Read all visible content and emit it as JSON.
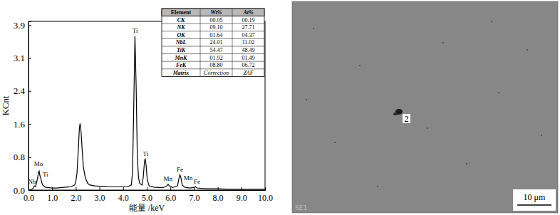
{
  "chart_data": {
    "type": "line",
    "x_label": "能量 /keV",
    "y_label": "KCnt",
    "x": [
      0,
      0.1,
      0.2,
      0.25,
      0.3,
      0.35,
      0.39,
      0.42,
      0.45,
      0.48,
      0.52,
      0.56,
      0.6,
      0.7,
      0.8,
      1.0,
      1.2,
      1.4,
      1.6,
      1.8,
      1.95,
      2.0,
      2.05,
      2.1,
      2.15,
      2.18,
      2.22,
      2.27,
      2.32,
      2.4,
      2.5,
      2.6,
      2.8,
      3.0,
      3.2,
      3.4,
      3.6,
      3.8,
      4.0,
      4.2,
      4.35,
      4.4,
      4.45,
      4.5,
      4.55,
      4.6,
      4.65,
      4.7,
      4.8,
      4.85,
      4.9,
      4.93,
      4.97,
      5.02,
      5.1,
      5.3,
      5.5,
      5.7,
      5.85,
      5.9,
      5.95,
      6.1,
      6.3,
      6.35,
      6.4,
      6.45,
      6.5,
      6.6,
      6.8,
      7.0,
      7.06,
      7.12,
      7.3,
      7.6,
      8.0,
      8.5,
      9.0,
      9.5,
      10.0
    ],
    "values": [
      0,
      0.01,
      0.04,
      0.1,
      0.08,
      0.2,
      0.3,
      0.42,
      0.45,
      0.35,
      0.28,
      0.18,
      0.12,
      0.07,
      0.06,
      0.05,
      0.05,
      0.06,
      0.07,
      0.08,
      0.12,
      0.2,
      0.4,
      0.9,
      1.45,
      1.58,
      1.4,
      0.95,
      0.55,
      0.3,
      0.16,
      0.12,
      0.1,
      0.09,
      0.09,
      0.08,
      0.08,
      0.08,
      0.08,
      0.08,
      0.12,
      0.45,
      2.0,
      3.65,
      2.5,
      0.8,
      0.3,
      0.16,
      0.12,
      0.3,
      0.65,
      0.75,
      0.6,
      0.25,
      0.1,
      0.07,
      0.06,
      0.06,
      0.1,
      0.14,
      0.1,
      0.06,
      0.1,
      0.25,
      0.36,
      0.28,
      0.12,
      0.07,
      0.05,
      0.06,
      0.08,
      0.05,
      0.04,
      0.03,
      0.03,
      0.02,
      0.02,
      0.02,
      0.02
    ],
    "color": "#000000",
    "xlim": [
      0,
      10.0
    ],
    "xticks": [
      {
        "value": 0,
        "label": "0.0"
      },
      {
        "value": 1,
        "label": "1.0"
      },
      {
        "value": 2,
        "label": "2.0"
      },
      {
        "value": 3,
        "label": "3.0"
      },
      {
        "value": 4,
        "label": "4.0"
      },
      {
        "value": 5,
        "label": "5.0"
      },
      {
        "value": 6,
        "label": "6.0"
      },
      {
        "value": 7,
        "label": "7.0"
      },
      {
        "value": 8,
        "label": "8.0"
      },
      {
        "value": 9,
        "label": "9.0"
      },
      {
        "value": 10,
        "label": "10.0"
      }
    ],
    "ylim": [
      0,
      4.0
    ],
    "yticks": [
      {
        "value": 0,
        "label": "0.0"
      },
      {
        "value": 0.78,
        "label": "0.8"
      },
      {
        "value": 1.57,
        "label": "1.6"
      },
      {
        "value": 2.35,
        "label": "2.4"
      },
      {
        "value": 3.13,
        "label": "3.1"
      },
      {
        "value": 3.91,
        "label": "3.9"
      }
    ],
    "grid": false,
    "annotations": [
      {
        "text": "Nb",
        "x": 0.15,
        "y": 0.13
      },
      {
        "text": "Mo",
        "x": 0.42,
        "y": 0.55
      },
      {
        "text": "Ti",
        "x": 0.72,
        "y": 0.3
      },
      {
        "text": "Ti",
        "x": 4.51,
        "y": 3.72
      },
      {
        "text": "Ti",
        "x": 4.95,
        "y": 0.8
      },
      {
        "text": "Mn",
        "x": 5.9,
        "y": 0.2
      },
      {
        "text": "Fe",
        "x": 6.4,
        "y": 0.42
      },
      {
        "text": "Mn",
        "x": 6.75,
        "y": 0.22
      },
      {
        "text": "Fe",
        "x": 7.12,
        "y": 0.13
      }
    ]
  },
  "table": {
    "columns": [
      "Element",
      "Wt%",
      "At%"
    ],
    "rows": [
      [
        "CK",
        "00.05",
        "00.19"
      ],
      [
        "NK",
        "09.10",
        "27.71"
      ],
      [
        "OK",
        "01.64",
        "04.37"
      ],
      [
        "NbL",
        "24.01",
        "11.02"
      ],
      [
        "TiK",
        "54.47",
        "48.49"
      ],
      [
        "MnK",
        "01.92",
        "01.49"
      ],
      [
        "FeK",
        "08.80",
        "06.72"
      ],
      [
        "Matrix",
        "Correction",
        "ZAF"
      ]
    ]
  },
  "image": {
    "marker_label": "2",
    "watermark": "SE1",
    "scale_bar": "10 μm"
  }
}
